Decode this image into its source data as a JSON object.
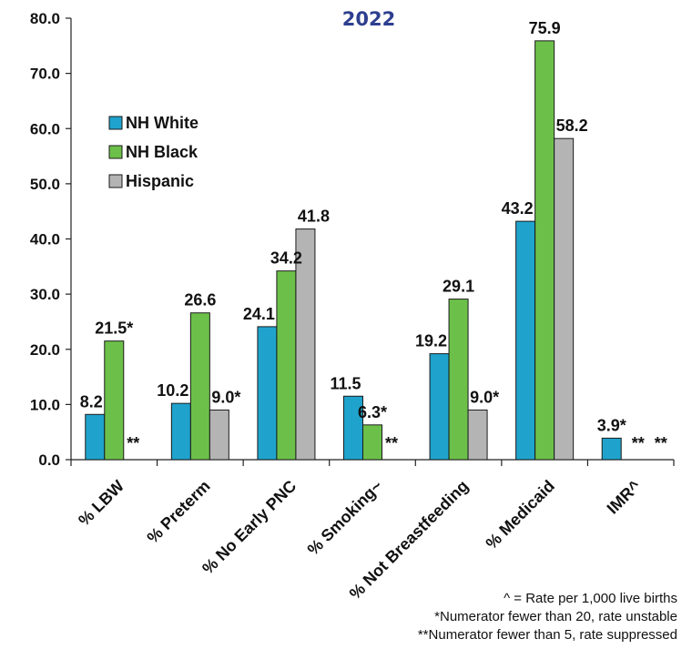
{
  "chart_data": {
    "type": "bar",
    "title": "2022",
    "categories": [
      "% LBW",
      "% Preterm",
      "% No Early PNC",
      "% Smoking~",
      "% Not Breastfeeding",
      "% Medicaid",
      "IMR^"
    ],
    "series": [
      {
        "name": "NH White",
        "color": "#1FA3CC",
        "values": [
          8.2,
          10.2,
          24.1,
          11.5,
          19.2,
          43.2,
          3.9
        ],
        "labels": [
          "8.2",
          "10.2",
          "24.1",
          "11.5",
          "19.2",
          "43.2",
          "3.9*"
        ]
      },
      {
        "name": "NH Black",
        "color": "#6CC04A",
        "values": [
          21.5,
          26.6,
          34.2,
          6.3,
          29.1,
          75.9,
          null
        ],
        "labels": [
          "21.5*",
          "26.6",
          "34.2",
          "6.3*",
          "29.1",
          "75.9",
          "**"
        ]
      },
      {
        "name": "Hispanic",
        "color": "#B4B4B4",
        "values": [
          null,
          9.0,
          41.8,
          null,
          9.0,
          58.2,
          null
        ],
        "labels": [
          "**",
          "9.0*",
          "41.8",
          "**",
          "9.0*",
          "58.2",
          "**"
        ]
      }
    ],
    "ylim": [
      0,
      80
    ],
    "yticks": [
      "0.0",
      "10.0",
      "20.0",
      "30.0",
      "40.0",
      "50.0",
      "60.0",
      "70.0",
      "80.0"
    ],
    "grid": false,
    "legend_position": "upper-left"
  },
  "footnotes": [
    "^ = Rate per 1,000 live births",
    "*Numerator fewer than 20, rate unstable",
    "**Numerator fewer than 5, rate suppressed"
  ]
}
